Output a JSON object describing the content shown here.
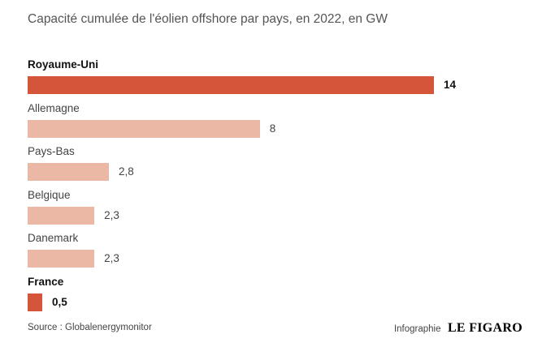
{
  "title": "Capacité cumulée de l'éolien offshore par pays, en 2022, en GW",
  "source": "Source : Globalenergymonitor",
  "credit": {
    "prefix": "Infographie",
    "logo": "LE FIGARO"
  },
  "colors": {
    "highlight": "#d4553a",
    "normal": "#ebb8a6"
  },
  "chart_data": {
    "type": "bar",
    "orientation": "horizontal",
    "title": "Capacité cumulée de l'éolien offshore par pays, en 2022, en GW",
    "categories": [
      "Royaume-Uni",
      "Allemagne",
      "Pays-Bas",
      "Belgique",
      "Danemark",
      "France"
    ],
    "values": [
      14,
      8,
      2.8,
      2.3,
      2.3,
      0.5
    ],
    "value_labels": [
      "14",
      "8",
      "2,8",
      "2,3",
      "2,3",
      "0,5"
    ],
    "highlighted": [
      "Royaume-Uni",
      "France"
    ],
    "xlim": [
      0,
      14
    ]
  }
}
